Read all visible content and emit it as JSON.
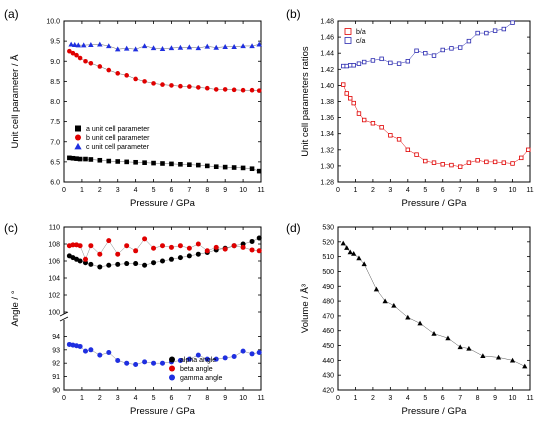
{
  "chart_data": [
    {
      "panel": "(a)",
      "type": "scatter",
      "xlabel": "Pressure / GPa",
      "ylabel": "Unit cell parameter / Å",
      "xlim": [
        0,
        11
      ],
      "ylim": [
        6.0,
        10.0
      ],
      "xticks": [
        "0",
        "1",
        "2",
        "3",
        "4",
        "5",
        "6",
        "7",
        "8",
        "9",
        "10",
        "11"
      ],
      "yticks": [
        "6.0",
        "6.5",
        "7.0",
        "7.5",
        "8.0",
        "8.5",
        "9.0",
        "9.5",
        "10.0"
      ],
      "legend_position": "lower-left",
      "series": [
        {
          "name": "a unit cell parameter",
          "color": "#000000",
          "marker": "square",
          "x": [
            0.3,
            0.5,
            0.7,
            0.9,
            1.2,
            1.5,
            2.0,
            2.5,
            3.0,
            3.5,
            4.0,
            4.5,
            5.0,
            5.5,
            6.0,
            6.5,
            7.0,
            7.5,
            8.0,
            8.5,
            9.0,
            9.5,
            10.0,
            10.5,
            10.9
          ],
          "y": [
            6.6,
            6.59,
            6.58,
            6.57,
            6.57,
            6.56,
            6.54,
            6.52,
            6.51,
            6.5,
            6.49,
            6.48,
            6.47,
            6.46,
            6.45,
            6.44,
            6.43,
            6.42,
            6.4,
            6.38,
            6.37,
            6.36,
            6.35,
            6.33,
            6.27
          ]
        },
        {
          "name": "b unit cell parameter",
          "color": "#e00000",
          "marker": "circle",
          "x": [
            0.3,
            0.5,
            0.7,
            0.9,
            1.2,
            1.5,
            2.0,
            2.5,
            3.0,
            3.5,
            4.0,
            4.5,
            5.0,
            5.5,
            6.0,
            6.5,
            7.0,
            7.5,
            8.0,
            8.5,
            9.0,
            9.5,
            10.0,
            10.5,
            10.9
          ],
          "y": [
            9.25,
            9.2,
            9.15,
            9.08,
            9.0,
            8.95,
            8.87,
            8.78,
            8.7,
            8.65,
            8.56,
            8.5,
            8.45,
            8.42,
            8.4,
            8.38,
            8.37,
            8.35,
            8.33,
            8.3,
            8.3,
            8.29,
            8.28,
            8.28,
            8.27
          ]
        },
        {
          "name": "c unit cell parameter",
          "color": "#1f2fe0",
          "marker": "triangle",
          "x": [
            0.4,
            0.6,
            0.8,
            1.1,
            1.5,
            2.0,
            2.5,
            3.0,
            3.5,
            4.0,
            4.5,
            5.0,
            5.5,
            6.0,
            6.5,
            7.0,
            7.5,
            8.0,
            8.5,
            9.0,
            9.5,
            10.0,
            10.5,
            10.9
          ],
          "y": [
            9.42,
            9.41,
            9.4,
            9.4,
            9.41,
            9.42,
            9.38,
            9.3,
            9.32,
            9.3,
            9.38,
            9.33,
            9.31,
            9.33,
            9.34,
            9.35,
            9.33,
            9.37,
            9.34,
            9.36,
            9.36,
            9.38,
            9.38,
            9.42
          ]
        }
      ]
    },
    {
      "panel": "(b)",
      "type": "line",
      "xlabel": "Pressure / GPa",
      "ylabel": "Unit cell parameters ratios",
      "xlim": [
        0,
        11
      ],
      "ylim": [
        1.28,
        1.48
      ],
      "xticks": [
        "0",
        "1",
        "2",
        "3",
        "4",
        "5",
        "6",
        "7",
        "8",
        "9",
        "10",
        "11"
      ],
      "yticks": [
        "1.28",
        "1.30",
        "1.32",
        "1.34",
        "1.36",
        "1.38",
        "1.40",
        "1.42",
        "1.44",
        "1.46",
        "1.48"
      ],
      "legend_position": "top-left",
      "series": [
        {
          "name": "b/a",
          "color": "#e00000",
          "marker": "open-square",
          "x": [
            0.3,
            0.5,
            0.7,
            0.9,
            1.2,
            1.5,
            2.0,
            2.5,
            3.0,
            3.5,
            4.0,
            4.5,
            5.0,
            5.5,
            6.0,
            6.5,
            7.0,
            7.5,
            8.0,
            8.5,
            9.0,
            9.5,
            10.0,
            10.5,
            10.9
          ],
          "y": [
            1.401,
            1.39,
            1.384,
            1.378,
            1.365,
            1.357,
            1.353,
            1.348,
            1.338,
            1.333,
            1.32,
            1.314,
            1.306,
            1.304,
            1.302,
            1.301,
            1.299,
            1.304,
            1.307,
            1.305,
            1.305,
            1.304,
            1.303,
            1.31,
            1.32
          ]
        },
        {
          "name": "c/a",
          "color": "#2a2ab0",
          "marker": "open-square",
          "x": [
            0.3,
            0.5,
            0.7,
            0.9,
            1.2,
            1.5,
            2.0,
            2.5,
            3.0,
            3.5,
            4.0,
            4.5,
            5.0,
            5.5,
            6.0,
            6.5,
            7.0,
            7.5,
            8.0,
            8.5,
            9.0,
            9.5,
            10.0
          ],
          "y": [
            1.424,
            1.424,
            1.425,
            1.425,
            1.427,
            1.429,
            1.431,
            1.433,
            1.428,
            1.427,
            1.43,
            1.443,
            1.44,
            1.437,
            1.444,
            1.446,
            1.447,
            1.455,
            1.465,
            1.465,
            1.468,
            1.47,
            1.478
          ]
        }
      ]
    },
    {
      "panel": "(c)",
      "type": "scatter",
      "xlabel": "Pressure / GPa",
      "ylabel": "Angle / °",
      "xlim": [
        0,
        11
      ],
      "axis_break": "between 95 and 100",
      "ylim_upper": [
        100,
        110
      ],
      "ylim_lower": [
        90,
        95
      ],
      "xticks": [
        "0",
        "1",
        "2",
        "3",
        "4",
        "5",
        "6",
        "7",
        "8",
        "9",
        "10",
        "11"
      ],
      "yticks_upper": [
        "100",
        "102",
        "104",
        "106",
        "108",
        "110"
      ],
      "yticks_lower": [
        "90",
        "91",
        "92",
        "93",
        "94"
      ],
      "legend_position": "bottom-right",
      "series": [
        {
          "name": "alpha angle",
          "color": "#000000",
          "marker": "circle",
          "x": [
            0.3,
            0.5,
            0.7,
            0.9,
            1.2,
            1.5,
            2.0,
            2.5,
            3.0,
            3.5,
            4.0,
            4.5,
            5.0,
            5.5,
            6.0,
            6.5,
            7.0,
            7.5,
            8.0,
            8.5,
            9.0,
            9.5,
            10.0,
            10.5,
            10.9
          ],
          "y": [
            106.6,
            106.4,
            106.2,
            106.0,
            105.8,
            105.6,
            105.3,
            105.5,
            105.6,
            105.7,
            105.7,
            105.5,
            105.8,
            106.0,
            106.2,
            106.4,
            106.6,
            106.8,
            107.0,
            107.3,
            107.5,
            107.8,
            108.0,
            108.3,
            108.7
          ]
        },
        {
          "name": "beta angle",
          "color": "#e00000",
          "marker": "circle",
          "x": [
            0.3,
            0.5,
            0.7,
            0.9,
            1.2,
            1.5,
            2.0,
            2.5,
            3.0,
            3.5,
            4.0,
            4.5,
            5.0,
            5.5,
            6.0,
            6.5,
            7.0,
            7.5,
            8.0,
            8.5,
            9.0,
            9.5,
            10.0,
            10.5,
            10.9
          ],
          "y": [
            107.8,
            107.9,
            107.9,
            107.8,
            106.2,
            107.8,
            106.8,
            108.4,
            106.8,
            107.8,
            107.2,
            108.6,
            107.5,
            107.8,
            107.6,
            107.8,
            107.5,
            108.0,
            107.2,
            107.6,
            107.4,
            107.8,
            107.6,
            107.3,
            107.2
          ]
        },
        {
          "name": "gamma angle",
          "color": "#1f2fe0",
          "marker": "circle",
          "x": [
            0.3,
            0.5,
            0.7,
            0.9,
            1.2,
            1.5,
            2.0,
            2.5,
            3.0,
            3.5,
            4.0,
            4.5,
            5.0,
            5.5,
            6.0,
            6.5,
            7.0,
            7.5,
            8.0,
            8.5,
            9.0,
            9.5,
            10.0,
            10.5,
            10.9
          ],
          "y": [
            93.4,
            93.35,
            93.3,
            93.25,
            92.9,
            93.0,
            92.6,
            92.8,
            92.2,
            92.0,
            91.9,
            92.1,
            92.0,
            92.0,
            92.1,
            92.2,
            92.3,
            92.6,
            92.3,
            92.3,
            92.4,
            92.5,
            92.9,
            92.7,
            92.8
          ]
        }
      ]
    },
    {
      "panel": "(d)",
      "type": "scatter",
      "xlabel": "Pressure / GPa",
      "ylabel": "Volume / Å³",
      "xlim": [
        0,
        11
      ],
      "ylim": [
        420,
        530
      ],
      "xticks": [
        "0",
        "1",
        "2",
        "3",
        "4",
        "5",
        "6",
        "7",
        "8",
        "9",
        "10",
        "11"
      ],
      "yticks": [
        "420",
        "430",
        "440",
        "450",
        "460",
        "470",
        "480",
        "490",
        "500",
        "510",
        "520",
        "530"
      ],
      "series": [
        {
          "name": "",
          "color": "#000000",
          "marker": "triangle",
          "x": [
            0.3,
            0.5,
            0.7,
            0.9,
            1.2,
            1.5,
            2.2,
            2.7,
            3.2,
            4.0,
            4.7,
            5.5,
            6.3,
            7.0,
            7.5,
            8.3,
            9.2,
            10.0,
            10.7
          ],
          "y": [
            519,
            516,
            513,
            512,
            509,
            505,
            488,
            480,
            477,
            469,
            465,
            458,
            455,
            449,
            448,
            443,
            442,
            440,
            436
          ]
        }
      ]
    }
  ]
}
